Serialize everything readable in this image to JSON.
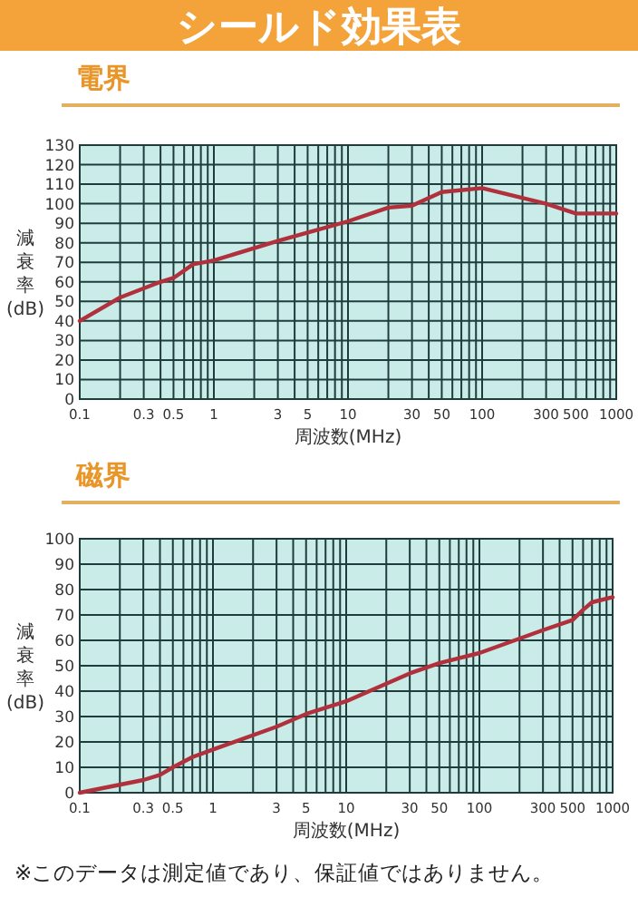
{
  "chart_data": [
    {
      "type": "line",
      "title": "シールド効果表",
      "subtitle": "電界",
      "xlabel": "周波数(MHz)",
      "ylabel": "減衰率(dB)",
      "log": "x",
      "grid": true,
      "marker": "none",
      "line_style": "solid",
      "color": "#b0303c",
      "x": [
        0.1,
        0.2,
        0.4,
        0.5,
        0.7,
        1,
        3,
        10,
        20,
        30,
        50,
        100,
        300,
        500,
        1000
      ],
      "values": [
        40,
        52,
        60,
        62,
        69,
        71,
        81,
        91,
        98,
        99,
        106,
        108,
        100,
        95,
        95
      ],
      "xlim": [
        0.1,
        1000
      ],
      "ylim": [
        0,
        130
      ],
      "xticks": [
        0.1,
        {
          "value": 0.2,
          "label": null
        },
        0.3,
        {
          "value": 0.4,
          "label": null
        },
        0.5,
        {
          "value": 0.6,
          "label": null
        },
        {
          "value": 0.7,
          "label": null
        },
        {
          "value": 0.8,
          "label": null
        },
        {
          "value": 0.9,
          "label": null
        },
        1,
        {
          "value": 2,
          "label": null
        },
        3,
        {
          "value": 4,
          "label": null
        },
        5,
        {
          "value": 6,
          "label": null
        },
        {
          "value": 7,
          "label": null
        },
        {
          "value": 8,
          "label": null
        },
        {
          "value": 9,
          "label": null
        },
        10,
        {
          "value": 20,
          "label": null
        },
        30,
        {
          "value": 40,
          "label": null
        },
        50,
        {
          "value": 60,
          "label": null
        },
        {
          "value": 70,
          "label": null
        },
        {
          "value": 80,
          "label": null
        },
        {
          "value": 90,
          "label": null
        },
        100,
        {
          "value": 200,
          "label": null
        },
        300,
        {
          "value": 400,
          "label": null
        },
        500,
        {
          "value": 600,
          "label": null
        },
        {
          "value": 700,
          "label": null
        },
        {
          "value": 800,
          "label": null
        },
        {
          "value": 900,
          "label": null
        },
        1000
      ],
      "yticks": [
        0,
        10,
        20,
        30,
        40,
        50,
        60,
        70,
        80,
        90,
        100,
        110,
        120,
        130
      ]
    },
    {
      "type": "line",
      "subtitle": "磁界",
      "xlabel": "周波数(MHz)",
      "ylabel": "減衰率(dB)",
      "log": "x",
      "grid": true,
      "marker": "none",
      "line_style": "solid",
      "color": "#b0303c",
      "x": [
        0.1,
        0.3,
        0.4,
        0.5,
        0.7,
        1,
        3,
        5,
        10,
        30,
        50,
        100,
        300,
        500,
        600,
        700,
        1000
      ],
      "values": [
        0,
        5,
        7,
        10,
        14,
        17,
        26,
        31,
        36,
        47,
        51,
        55,
        64,
        68,
        72,
        75,
        77
      ],
      "xlim": [
        0.1,
        1000
      ],
      "ylim": [
        0,
        100
      ],
      "xticks": [
        0.1,
        {
          "value": 0.2,
          "label": null
        },
        0.3,
        {
          "value": 0.4,
          "label": null
        },
        0.5,
        {
          "value": 0.6,
          "label": null
        },
        {
          "value": 0.7,
          "label": null
        },
        {
          "value": 0.8,
          "label": null
        },
        {
          "value": 0.9,
          "label": null
        },
        1,
        {
          "value": 2,
          "label": null
        },
        3,
        {
          "value": 4,
          "label": null
        },
        5,
        {
          "value": 6,
          "label": null
        },
        {
          "value": 7,
          "label": null
        },
        {
          "value": 8,
          "label": null
        },
        {
          "value": 9,
          "label": null
        },
        10,
        {
          "value": 20,
          "label": null
        },
        30,
        {
          "value": 40,
          "label": null
        },
        50,
        {
          "value": 60,
          "label": null
        },
        {
          "value": 70,
          "label": null
        },
        {
          "value": 80,
          "label": null
        },
        {
          "value": 90,
          "label": null
        },
        100,
        {
          "value": 200,
          "label": null
        },
        300,
        {
          "value": 400,
          "label": null
        },
        500,
        {
          "value": 600,
          "label": null
        },
        {
          "value": 700,
          "label": null
        },
        {
          "value": 800,
          "label": null
        },
        {
          "value": 900,
          "label": null
        },
        1000
      ],
      "yticks": [
        0,
        10,
        20,
        30,
        40,
        50,
        60,
        70,
        80,
        90,
        100
      ],
      "annotations": [
        "※このデータは測定値であり、保証値ではありません。"
      ]
    }
  ]
}
